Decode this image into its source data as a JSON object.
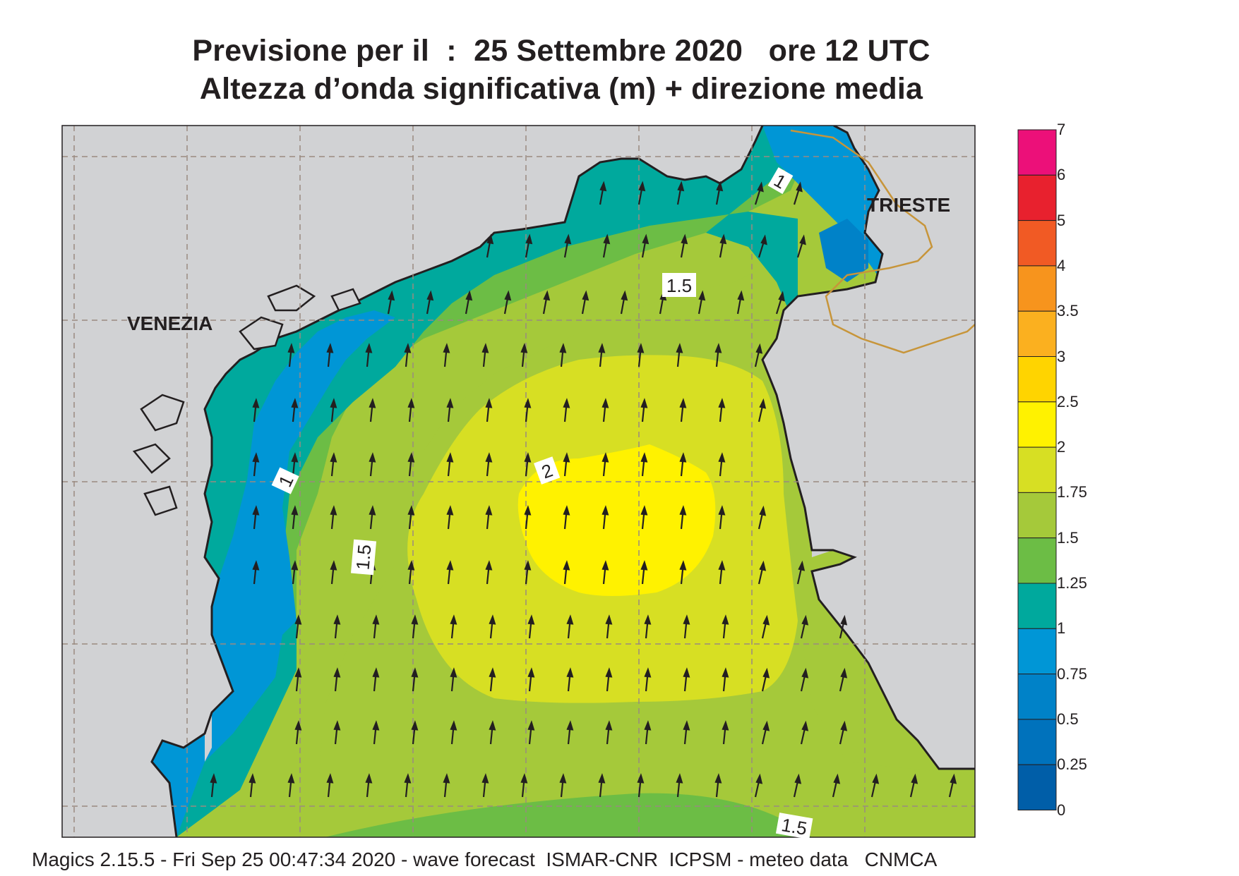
{
  "header": {
    "title_line1": "Previsione per il  :  25 Settembre 2020   ore 12 UTC",
    "title_line2": "Altezza d’onda significativa (m) + direzione media"
  },
  "map": {
    "places": [
      {
        "name": "VENEZIA"
      },
      {
        "name": "TRIESTE"
      }
    ],
    "contour_labels": [
      "1",
      "1",
      "1.5",
      "1.5",
      "2",
      "1.5"
    ],
    "colors": {
      "land": "#d1d2d4",
      "coast": "#231f20",
      "border": "#c7953a",
      "grid": "#9a8a80"
    }
  },
  "legend": {
    "ticks": [
      "7",
      "6",
      "5",
      "4",
      "3.5",
      "3",
      "2.5",
      "2",
      "1.75",
      "1.5",
      "1.25",
      "1",
      "0.75",
      "0.5",
      "0.25",
      "0"
    ],
    "colors": [
      "#ec1079",
      "#e8212e",
      "#f15a24",
      "#f7941d",
      "#fbb01f",
      "#ffd400",
      "#fff200",
      "#d7df23",
      "#a5c93a",
      "#6cbd45",
      "#00a99d",
      "#0096d6",
      "#0082c8",
      "#0072bc",
      "#005ea8"
    ]
  },
  "footer": {
    "text": "Magics 2.15.5 - Fri Sep 25 00:47:34 2020 - wave forecast  ISMAR-CNR  ICPSM - meteo data   CNMCA"
  }
}
